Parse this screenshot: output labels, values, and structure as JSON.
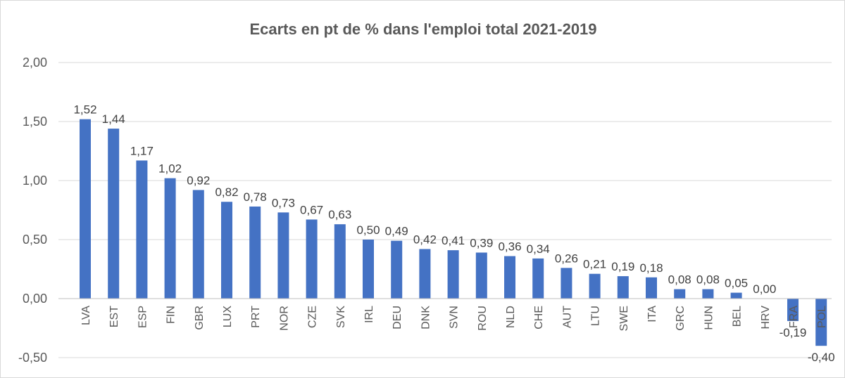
{
  "chart_data": {
    "type": "bar",
    "title": "Ecarts en pt de % dans l'emploi total 2021-2019",
    "xlabel": "",
    "ylabel": "",
    "ylim": [
      -0.5,
      2.0
    ],
    "yticks": [
      -0.5,
      0.0,
      0.5,
      1.0,
      1.5,
      2.0
    ],
    "ytick_labels": [
      "-0,50",
      "0,00",
      "0,50",
      "1,00",
      "1,50",
      "2,00"
    ],
    "grid": true,
    "legend": "none",
    "bar_color": "#4472C4",
    "categories": [
      "LVA",
      "EST",
      "ESP",
      "FIN",
      "GBR",
      "LUX",
      "PRT",
      "NOR",
      "CZE",
      "SVK",
      "IRL",
      "DEU",
      "DNK",
      "SVN",
      "ROU",
      "NLD",
      "CHE",
      "AUT",
      "LTU",
      "SWE",
      "ITA",
      "GRC",
      "HUN",
      "BEL",
      "HRV",
      "FRA",
      "POL"
    ],
    "values": [
      1.52,
      1.44,
      1.17,
      1.02,
      0.92,
      0.82,
      0.78,
      0.73,
      0.67,
      0.63,
      0.5,
      0.49,
      0.42,
      0.41,
      0.39,
      0.36,
      0.34,
      0.26,
      0.21,
      0.19,
      0.18,
      0.08,
      0.08,
      0.05,
      0.0,
      -0.19,
      -0.4
    ],
    "value_labels": [
      "1,52",
      "1,44",
      "1,17",
      "1,02",
      "0,92",
      "0,82",
      "0,78",
      "0,73",
      "0,67",
      "0,63",
      "0,50",
      "0,49",
      "0,42",
      "0,41",
      "0,39",
      "0,36",
      "0,34",
      "0,26",
      "0,21",
      "0,19",
      "0,18",
      "0,08",
      "0,08",
      "0,05",
      "0,00",
      "-0,19",
      "-0,40"
    ]
  }
}
